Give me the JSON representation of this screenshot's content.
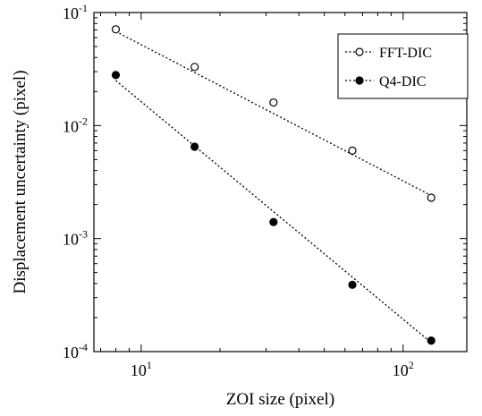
{
  "chart_data": {
    "type": "scatter",
    "title": "",
    "xlabel": "ZOI size (pixel)",
    "ylabel": "Displacement uncertainty (pixel)",
    "x_scale": "log",
    "y_scale": "log",
    "xlim": [
      6.6,
      175
    ],
    "ylim": [
      0.0001,
      0.1
    ],
    "x_ticks": [
      {
        "value": 10,
        "base": "10",
        "exp": "1"
      },
      {
        "value": 100,
        "base": "10",
        "exp": "2"
      }
    ],
    "y_ticks": [
      {
        "value": 0.1,
        "base": "10",
        "exp": "-1"
      },
      {
        "value": 0.01,
        "base": "10",
        "exp": "-2"
      },
      {
        "value": 0.001,
        "base": "10",
        "exp": "-3"
      },
      {
        "value": 0.0001,
        "base": "10",
        "exp": "-4"
      }
    ],
    "grid": false,
    "legend_position": "top-right",
    "series": [
      {
        "name": "FFT-DIC",
        "marker": "open-circle",
        "line": "dotted",
        "color": "#000000",
        "x": [
          8,
          16,
          32,
          64,
          128
        ],
        "y": [
          0.071,
          0.033,
          0.016,
          0.006,
          0.0023
        ],
        "fit": [
          [
            8,
            0.068
          ],
          [
            128,
            0.0024
          ]
        ]
      },
      {
        "name": "Q4-DIC",
        "marker": "filled-circle",
        "line": "dotted",
        "color": "#000000",
        "x": [
          8,
          16,
          32,
          64,
          128
        ],
        "y": [
          0.028,
          0.0065,
          0.0014,
          0.00039,
          0.000125
        ],
        "fit": [
          [
            8,
            0.025
          ],
          [
            128,
            0.00012
          ]
        ]
      }
    ]
  }
}
